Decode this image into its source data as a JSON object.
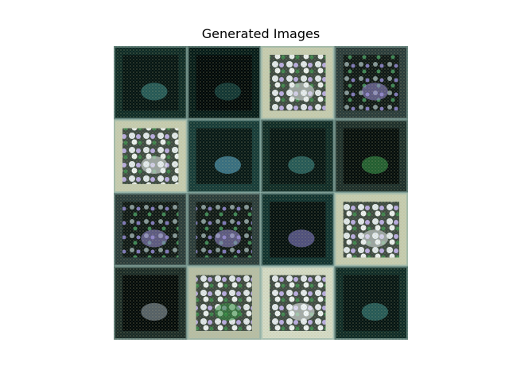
{
  "figure": {
    "title": "Generated Images"
  },
  "image_grid": {
    "rows": 4,
    "cols": 4,
    "tiles": [
      {
        "tone": "dark-teal"
      },
      {
        "tone": "dark"
      },
      {
        "tone": "bright-flowers"
      },
      {
        "tone": "mixed-purple"
      },
      {
        "tone": "bright-flowers"
      },
      {
        "tone": "dark-blue-patch"
      },
      {
        "tone": "dark-teal"
      },
      {
        "tone": "mixed-green"
      },
      {
        "tone": "mixed-purple"
      },
      {
        "tone": "mixed-purple"
      },
      {
        "tone": "dark-purple"
      },
      {
        "tone": "bright-flowers"
      },
      {
        "tone": "dark-flowers"
      },
      {
        "tone": "bright-green"
      },
      {
        "tone": "bright-white"
      },
      {
        "tone": "dark-teal"
      }
    ]
  },
  "colors": {
    "background": "#ffffff",
    "title_text": "#000000"
  }
}
